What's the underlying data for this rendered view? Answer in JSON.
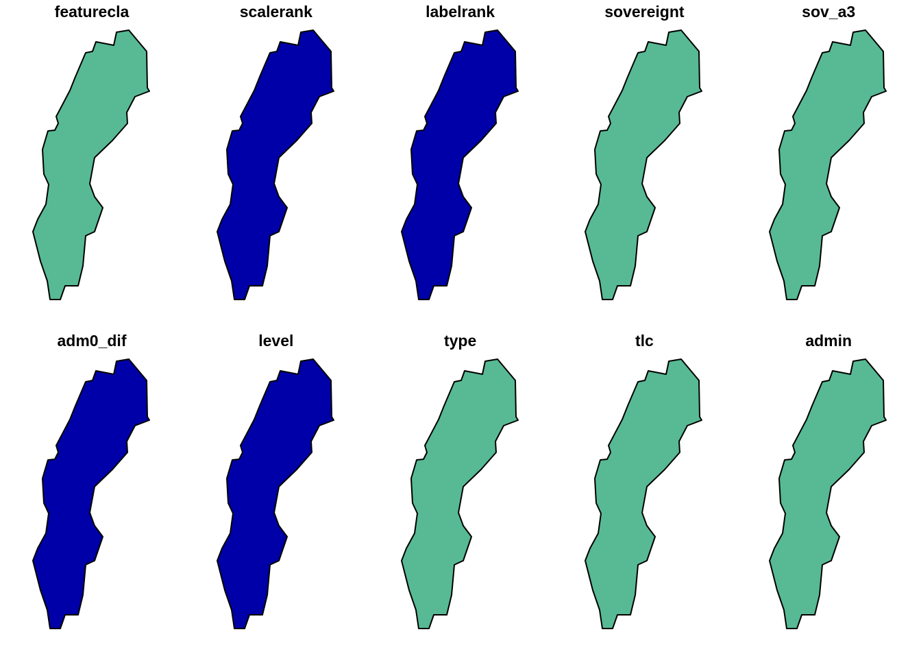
{
  "colors": {
    "green": "#57BA94",
    "blue": "#0000A8",
    "outline": "#000000"
  },
  "panels": [
    {
      "title": "featurecla",
      "fill": "green"
    },
    {
      "title": "scalerank",
      "fill": "blue"
    },
    {
      "title": "labelrank",
      "fill": "blue"
    },
    {
      "title": "sovereignt",
      "fill": "green"
    },
    {
      "title": "sov_a3",
      "fill": "green"
    },
    {
      "title": "adm0_dif",
      "fill": "blue"
    },
    {
      "title": "level",
      "fill": "blue"
    },
    {
      "title": "type",
      "fill": "green"
    },
    {
      "title": "tlc",
      "fill": "green"
    },
    {
      "title": "admin",
      "fill": "green"
    }
  ]
}
